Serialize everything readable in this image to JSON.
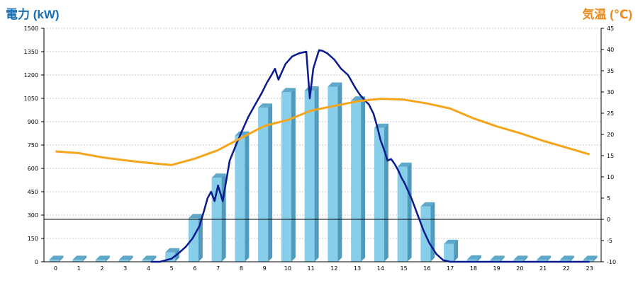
{
  "chart_data": {
    "type": "bar",
    "left_axis_title": "電力 (kW)",
    "right_axis_title": "気温 (℃)",
    "y_left": {
      "min": 0,
      "max": 1500,
      "ticks": [
        "0",
        "150",
        "300",
        "450",
        "600",
        "750",
        "900",
        "1050",
        "1200",
        "1350",
        "1500"
      ]
    },
    "y_right": {
      "min": -10,
      "max": 45,
      "ticks": [
        "-10",
        "-5",
        "0",
        "5",
        "10",
        "15",
        "20",
        "25",
        "30",
        "35",
        "40",
        "45"
      ]
    },
    "categories": [
      "0",
      "1",
      "2",
      "3",
      "4",
      "5",
      "6",
      "7",
      "8",
      "9",
      "10",
      "11",
      "12",
      "13",
      "14",
      "15",
      "16",
      "17",
      "18",
      "19",
      "20",
      "21",
      "22",
      "23"
    ],
    "series": [
      {
        "kind": "bar",
        "axis": "left",
        "values": [
          12,
          12,
          12,
          12,
          12,
          60,
          280,
          540,
          810,
          990,
          1090,
          1100,
          1125,
          1035,
          860,
          610,
          355,
          115,
          15,
          12,
          12,
          12,
          12,
          12
        ]
      },
      {
        "kind": "line",
        "axis": "left",
        "x": [
          4.1,
          4.5,
          5.0,
          5.3,
          5.6,
          5.9,
          6.2,
          6.4,
          6.55,
          6.7,
          6.85,
          7.0,
          7.2,
          7.5,
          7.8,
          8.0,
          8.3,
          8.6,
          8.9,
          9.1,
          9.3,
          9.45,
          9.6,
          9.9,
          10.2,
          10.5,
          10.8,
          10.95,
          11.1,
          11.2,
          11.35,
          11.5,
          11.7,
          12.0,
          12.3,
          12.6,
          12.9,
          13.1,
          13.3,
          13.5,
          13.7,
          13.85,
          14.0,
          14.15,
          14.3,
          14.45,
          14.6,
          14.75,
          14.9,
          15.05,
          15.2,
          15.35,
          15.5,
          15.65,
          15.85,
          16.1,
          16.4,
          16.7,
          17.0,
          17.2,
          17.45,
          17.7,
          18.0,
          23.0
        ],
        "values": [
          0,
          0,
          20,
          55,
          95,
          150,
          230,
          330,
          410,
          450,
          390,
          490,
          390,
          650,
          760,
          830,
          930,
          1010,
          1090,
          1150,
          1200,
          1240,
          1170,
          1270,
          1320,
          1340,
          1350,
          1050,
          1240,
          1290,
          1360,
          1355,
          1340,
          1300,
          1240,
          1200,
          1120,
          1075,
          1040,
          1010,
          950,
          870,
          780,
          720,
          650,
          660,
          630,
          590,
          540,
          500,
          450,
          400,
          340,
          280,
          200,
          120,
          50,
          10,
          0,
          0,
          0,
          0,
          0,
          0
        ]
      },
      {
        "kind": "line",
        "axis": "right",
        "values": [
          16.0,
          15.6,
          14.6,
          13.9,
          13.3,
          12.8,
          14.3,
          16.3,
          19.2,
          22.0,
          23.4,
          25.6,
          26.7,
          27.8,
          28.4,
          28.2,
          27.3,
          26.1,
          23.8,
          21.9,
          20.3,
          18.5,
          16.9,
          15.3
        ]
      }
    ],
    "colors": {
      "bar": "#87ceeb",
      "power_line": "#0a1a8c",
      "temp_line": "#f5a51c"
    },
    "grid": true
  }
}
